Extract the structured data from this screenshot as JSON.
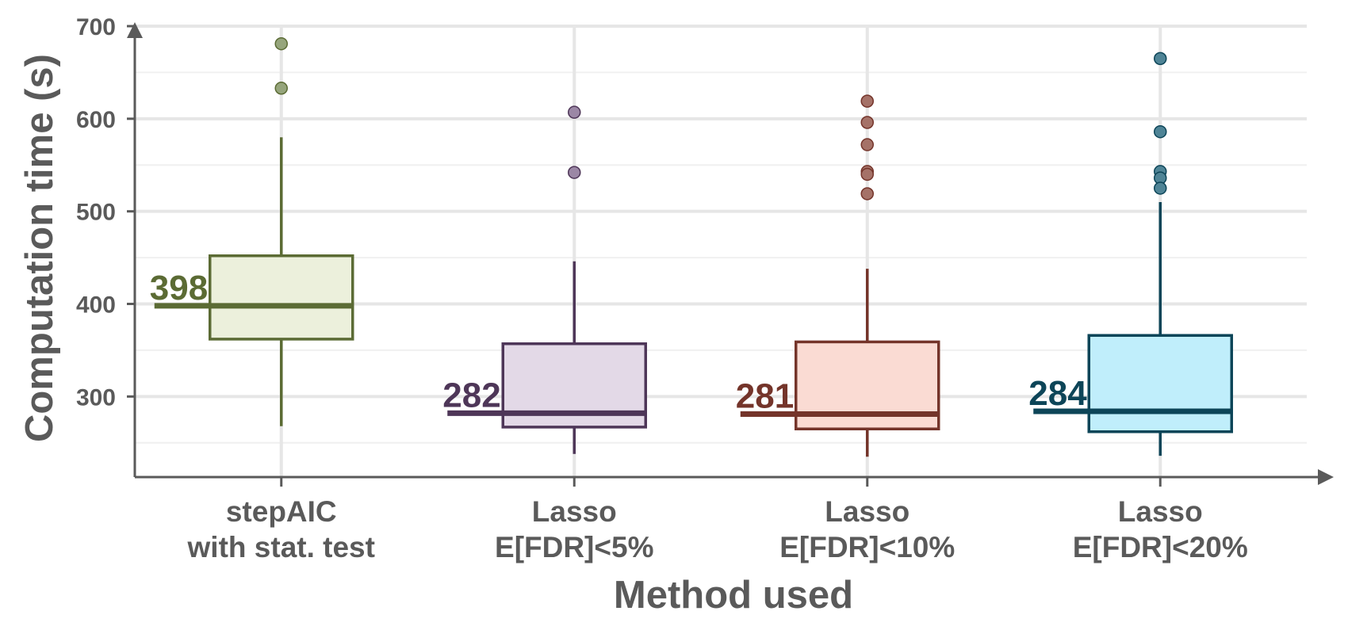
{
  "chart_data": {
    "type": "boxplot",
    "xlabel": "Method used",
    "ylabel": "Computation time (s)",
    "ylim": [
      213,
      700
    ],
    "yticks": [
      300,
      400,
      500,
      600,
      700
    ],
    "grid": true,
    "categories": [
      [
        "stepAIC",
        "with stat. test"
      ],
      [
        "Lasso",
        "E[FDR]<5%"
      ],
      [
        "Lasso",
        "E[FDR]<10%"
      ],
      [
        "Lasso",
        "E[FDR]<20%"
      ]
    ],
    "series": [
      {
        "stroke": "#5b6b34",
        "fill": "#ecf0dc",
        "point": "#96a57c",
        "whisker_low": 268,
        "q1": 362,
        "median": 398,
        "q3": 452,
        "whisker_high": 580,
        "median_label": "398",
        "outliers": [
          681,
          633
        ]
      },
      {
        "stroke": "#4e3658",
        "fill": "#e3d9e7",
        "point": "#9b87a5",
        "whisker_low": 238,
        "q1": 267,
        "median": 282,
        "q3": 357,
        "whisker_high": 446,
        "median_label": "282",
        "outliers": [
          607,
          542
        ]
      },
      {
        "stroke": "#74342a",
        "fill": "#fadbd3",
        "point": "#a57268",
        "whisker_low": 235,
        "q1": 265,
        "median": 281,
        "q3": 359,
        "whisker_high": 438,
        "median_label": "281",
        "outliers": [
          619,
          596,
          572,
          543,
          540,
          519
        ]
      },
      {
        "stroke": "#0d4558",
        "fill": "#c0eefb",
        "point": "#4f8496",
        "whisker_low": 236,
        "q1": 262,
        "median": 284,
        "q3": 366,
        "whisker_high": 510,
        "median_label": "284",
        "outliers": [
          665,
          586,
          543,
          536,
          525
        ]
      }
    ]
  }
}
